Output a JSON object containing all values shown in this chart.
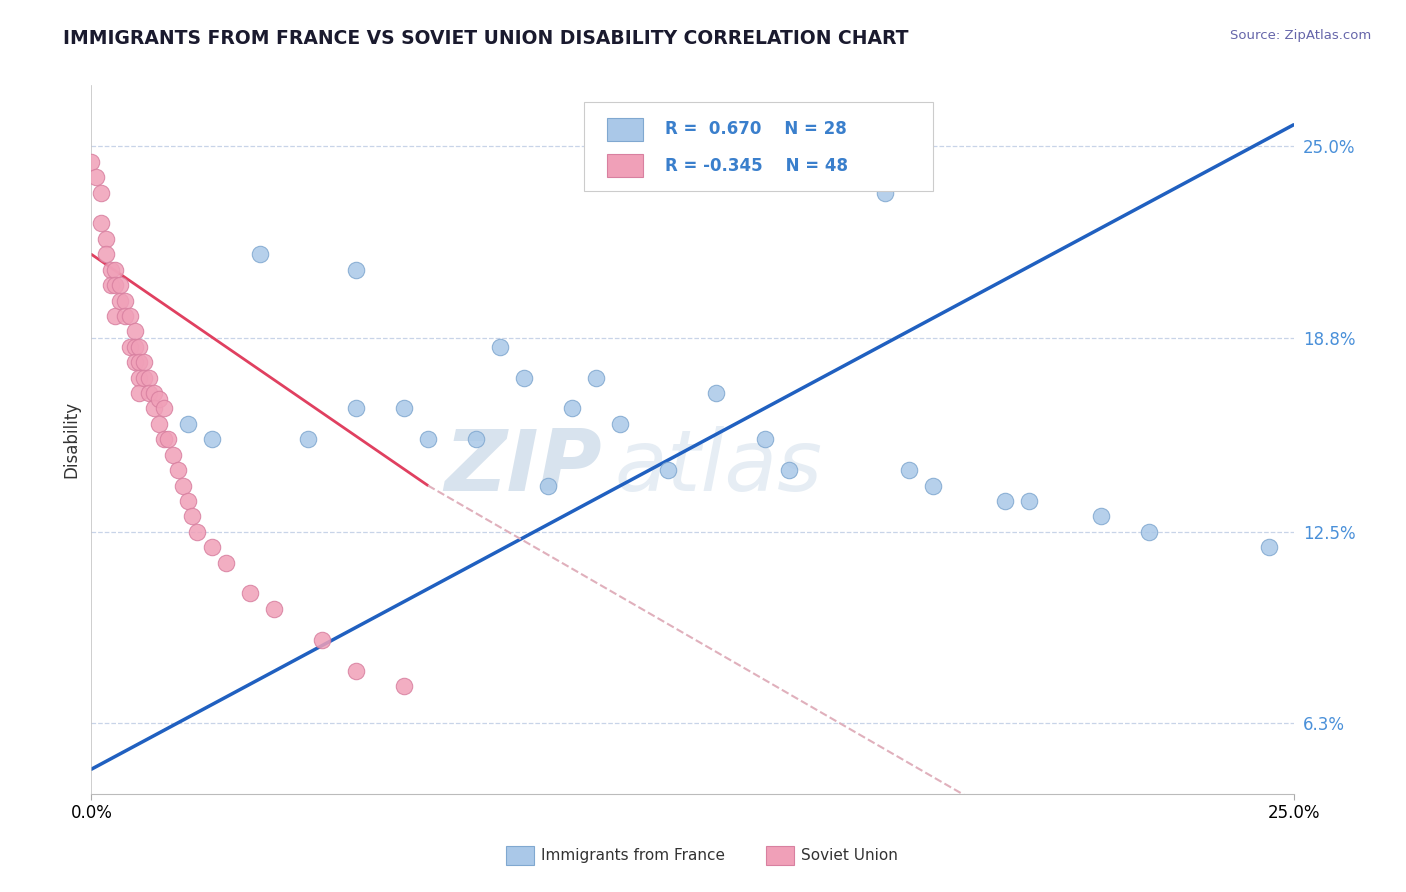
{
  "title": "IMMIGRANTS FROM FRANCE VS SOVIET UNION DISABILITY CORRELATION CHART",
  "source": "Source: ZipAtlas.com",
  "ylabel": "Disability",
  "xlim": [
    0.0,
    0.25
  ],
  "ylim": [
    0.04,
    0.27
  ],
  "france_color": "#aac8e8",
  "france_edge": "#80a8d0",
  "soviet_color": "#f0a0b8",
  "soviet_edge": "#d880a0",
  "trend_france_color": "#2060c0",
  "trend_soviet_solid_color": "#e04060",
  "trend_soviet_dashed_color": "#e0b0bc",
  "grid_color": "#c8d4e8",
  "background": "#ffffff",
  "france_R": 0.67,
  "france_N": 28,
  "soviet_R": -0.345,
  "soviet_N": 48,
  "ytick_vals": [
    0.063,
    0.125,
    0.188,
    0.25
  ],
  "ytick_labels": [
    "6.3%",
    "12.5%",
    "18.8%",
    "25.0%"
  ],
  "xtick_vals": [
    0.0,
    0.25
  ],
  "xtick_labels": [
    "0.0%",
    "25.0%"
  ],
  "legend_france": "Immigrants from France",
  "legend_soviet": "Soviet Union",
  "watermark_zip": "ZIP",
  "watermark_atlas": "atlas",
  "france_x": [
    0.035,
    0.055,
    0.15,
    0.165,
    0.085,
    0.09,
    0.055,
    0.045,
    0.025,
    0.02,
    0.065,
    0.1,
    0.11,
    0.14,
    0.145,
    0.17,
    0.19,
    0.22,
    0.245,
    0.175,
    0.12,
    0.07,
    0.08,
    0.095,
    0.105,
    0.13,
    0.195,
    0.21
  ],
  "france_y": [
    0.215,
    0.21,
    0.245,
    0.235,
    0.185,
    0.175,
    0.165,
    0.155,
    0.155,
    0.16,
    0.165,
    0.165,
    0.16,
    0.155,
    0.145,
    0.145,
    0.135,
    0.125,
    0.12,
    0.14,
    0.145,
    0.155,
    0.155,
    0.14,
    0.175,
    0.17,
    0.135,
    0.13
  ],
  "soviet_x": [
    0.0,
    0.001,
    0.002,
    0.002,
    0.003,
    0.003,
    0.004,
    0.004,
    0.005,
    0.005,
    0.005,
    0.006,
    0.006,
    0.007,
    0.007,
    0.008,
    0.008,
    0.009,
    0.009,
    0.009,
    0.01,
    0.01,
    0.01,
    0.01,
    0.011,
    0.011,
    0.012,
    0.012,
    0.013,
    0.013,
    0.014,
    0.014,
    0.015,
    0.015,
    0.016,
    0.017,
    0.018,
    0.019,
    0.02,
    0.021,
    0.022,
    0.025,
    0.028,
    0.033,
    0.038,
    0.048,
    0.055,
    0.065
  ],
  "soviet_y": [
    0.245,
    0.24,
    0.235,
    0.225,
    0.22,
    0.215,
    0.21,
    0.205,
    0.21,
    0.205,
    0.195,
    0.205,
    0.2,
    0.2,
    0.195,
    0.195,
    0.185,
    0.19,
    0.185,
    0.18,
    0.185,
    0.18,
    0.175,
    0.17,
    0.18,
    0.175,
    0.175,
    0.17,
    0.17,
    0.165,
    0.168,
    0.16,
    0.165,
    0.155,
    0.155,
    0.15,
    0.145,
    0.14,
    0.135,
    0.13,
    0.125,
    0.12,
    0.115,
    0.105,
    0.1,
    0.09,
    0.08,
    0.075
  ]
}
